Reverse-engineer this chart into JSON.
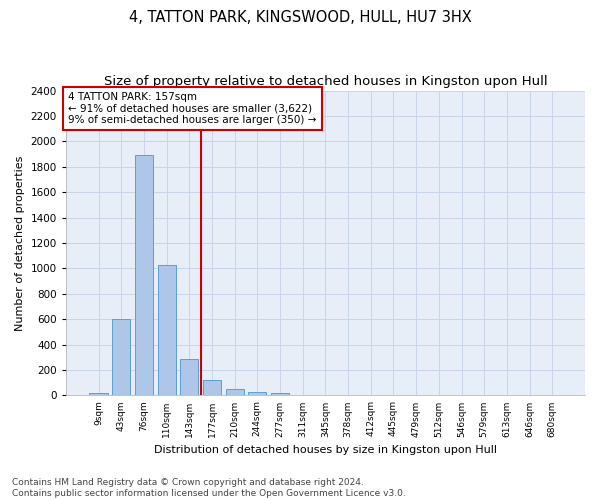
{
  "title": "4, TATTON PARK, KINGSWOOD, HULL, HU7 3HX",
  "subtitle": "Size of property relative to detached houses in Kingston upon Hull",
  "xlabel": "Distribution of detached houses by size in Kingston upon Hull",
  "ylabel": "Number of detached properties",
  "footnote": "Contains HM Land Registry data © Crown copyright and database right 2024.\nContains public sector information licensed under the Open Government Licence v3.0.",
  "bins": [
    "9sqm",
    "43sqm",
    "76sqm",
    "110sqm",
    "143sqm",
    "177sqm",
    "210sqm",
    "244sqm",
    "277sqm",
    "311sqm",
    "345sqm",
    "378sqm",
    "412sqm",
    "445sqm",
    "479sqm",
    "512sqm",
    "546sqm",
    "579sqm",
    "613sqm",
    "646sqm",
    "680sqm"
  ],
  "values": [
    20,
    600,
    1890,
    1030,
    290,
    120,
    50,
    30,
    20,
    0,
    0,
    0,
    0,
    0,
    0,
    0,
    0,
    0,
    0,
    0,
    0
  ],
  "bar_color": "#aec6e8",
  "bar_edge_color": "#5a9fd4",
  "vline_color": "#cc0000",
  "annotation_text": "4 TATTON PARK: 157sqm\n← 91% of detached houses are smaller (3,622)\n9% of semi-detached houses are larger (350) →",
  "annotation_box_color": "#cc0000",
  "ylim": [
    0,
    2400
  ],
  "yticks": [
    0,
    200,
    400,
    600,
    800,
    1000,
    1200,
    1400,
    1600,
    1800,
    2000,
    2200,
    2400
  ],
  "grid_color": "#c8d4e8",
  "bg_color": "#e8eef8",
  "title_fontsize": 10.5,
  "subtitle_fontsize": 9.5,
  "footnote_fontsize": 6.5
}
